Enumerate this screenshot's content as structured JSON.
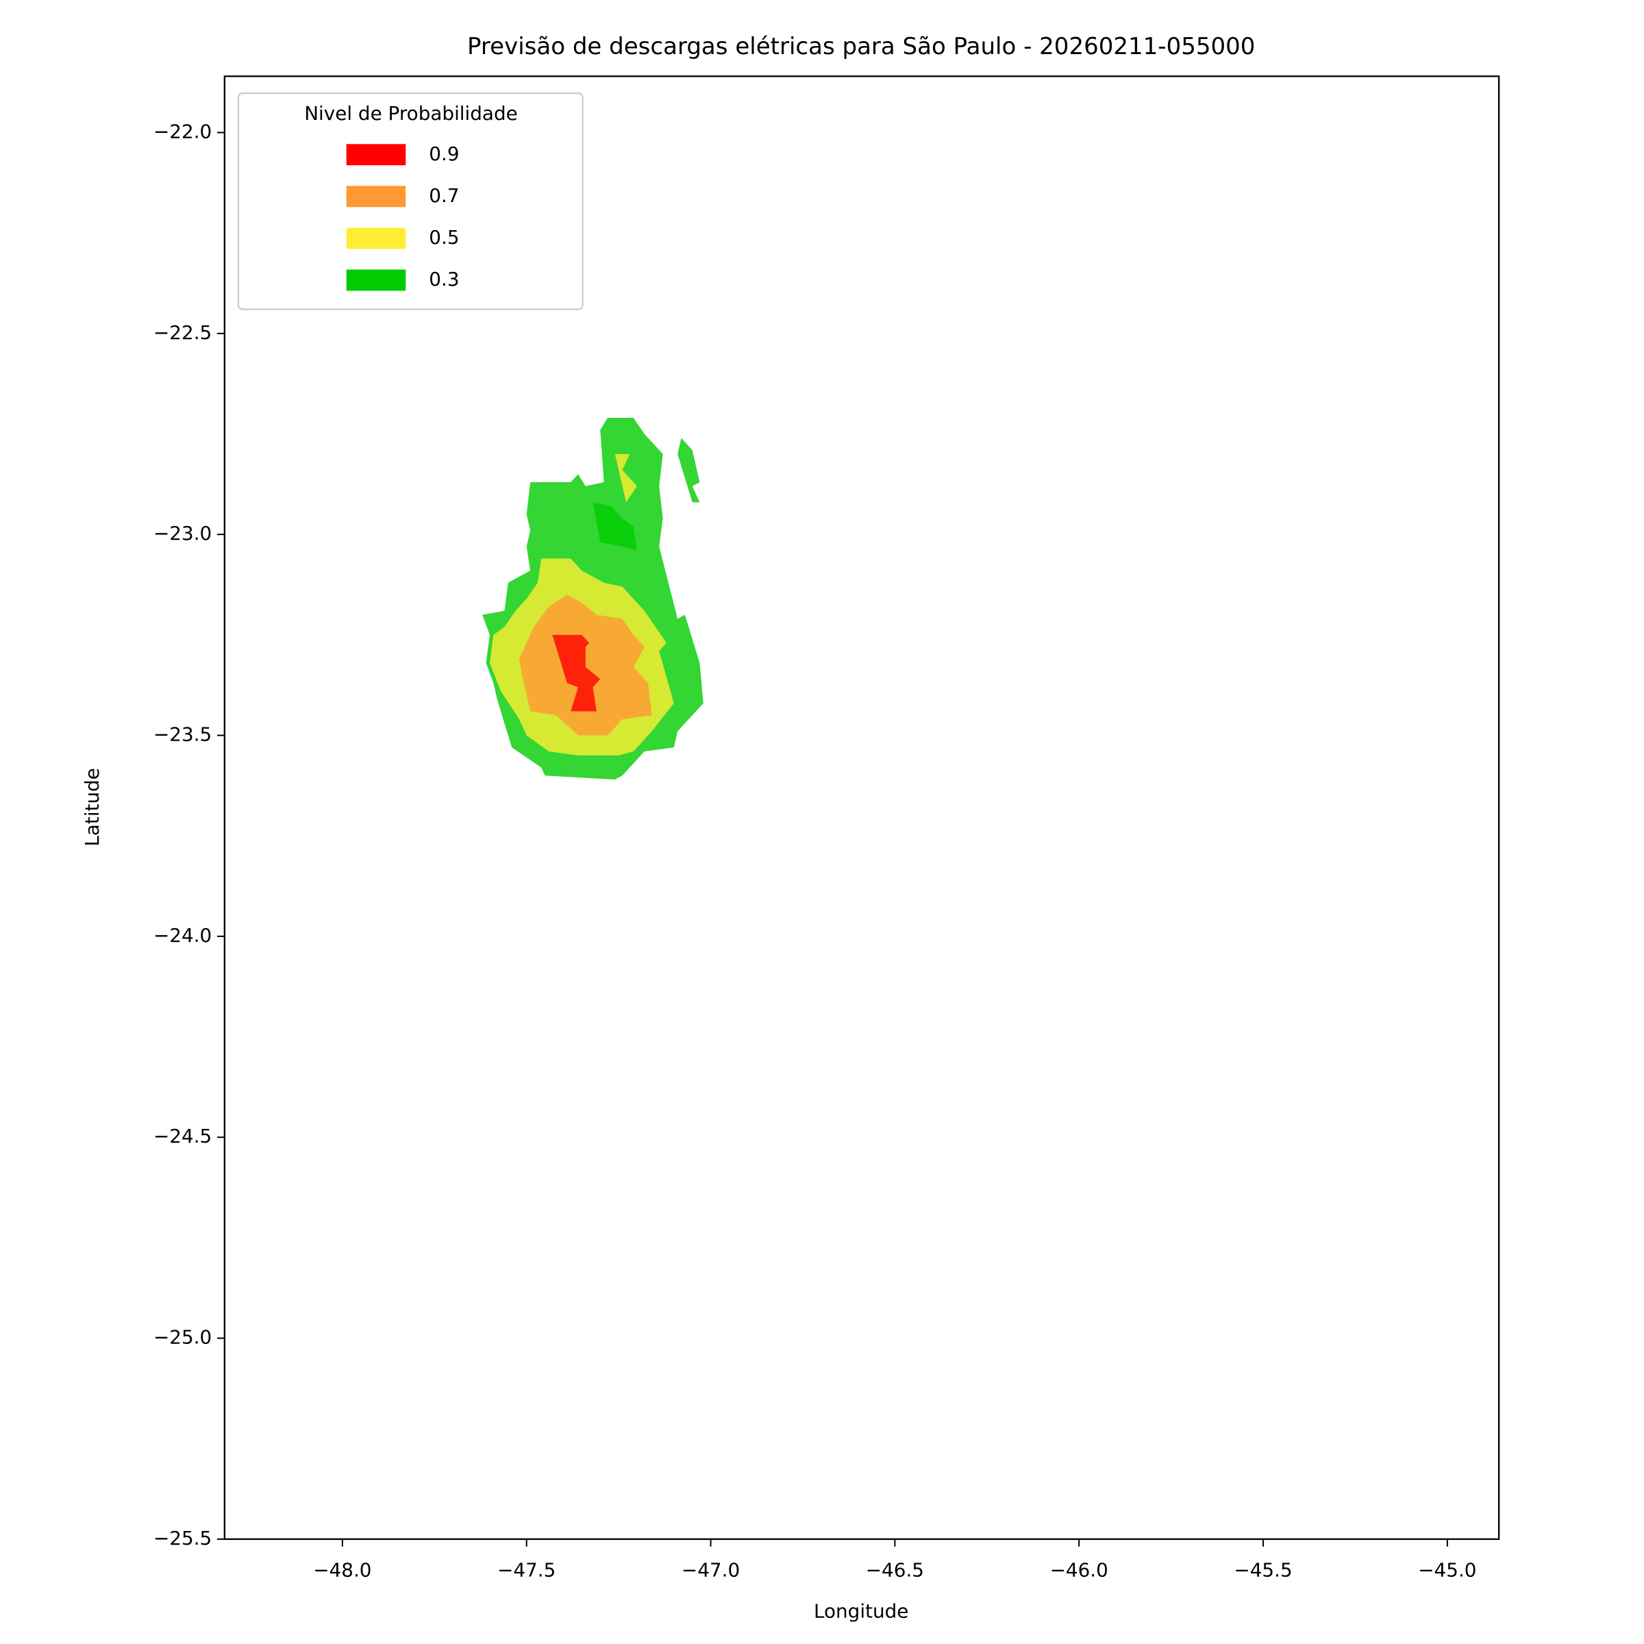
{
  "chart_data": {
    "type": "contourf",
    "title": "Previsão de descargas elétricas para São Paulo - 20260211-055000",
    "x_label": "Longitude",
    "y_label": "Latitude",
    "xlim": [
      -48.32,
      -44.86
    ],
    "ylim": [
      -25.5,
      -21.86
    ],
    "xticks": [
      {
        "value": -48.0,
        "label": "−48.0"
      },
      {
        "value": -47.5,
        "label": "−47.5"
      },
      {
        "value": -47.0,
        "label": "−47.0"
      },
      {
        "value": -46.5,
        "label": "−46.5"
      },
      {
        "value": -46.0,
        "label": "−46.0"
      },
      {
        "value": -45.5,
        "label": "−45.5"
      },
      {
        "value": -45.0,
        "label": "−45.0"
      }
    ],
    "yticks": [
      {
        "value": -22.0,
        "label": "−22.0"
      },
      {
        "value": -22.5,
        "label": "−22.5"
      },
      {
        "value": -23.0,
        "label": "−23.0"
      },
      {
        "value": -23.5,
        "label": "−23.5"
      },
      {
        "value": -24.0,
        "label": "−24.0"
      },
      {
        "value": -24.5,
        "label": "−24.5"
      },
      {
        "value": -25.0,
        "label": "−25.0"
      },
      {
        "value": -25.5,
        "label": "−25.5"
      }
    ],
    "legend_title": "Nivel de Probabilidade",
    "legend_position": "upper left",
    "fill_opacity": 0.8,
    "series": [
      {
        "name": "0.9",
        "color": "#ff0000",
        "polygons": [
          [
            [
              -47.43,
              -23.25
            ],
            [
              -47.35,
              -23.25
            ],
            [
              -47.33,
              -23.27
            ],
            [
              -47.34,
              -23.28
            ],
            [
              -47.34,
              -23.33
            ],
            [
              -47.3,
              -23.36
            ],
            [
              -47.32,
              -23.38
            ],
            [
              -47.31,
              -23.44
            ],
            [
              -47.38,
              -23.44
            ],
            [
              -47.36,
              -23.38
            ],
            [
              -47.39,
              -23.37
            ],
            [
              -47.41,
              -23.31
            ]
          ]
        ]
      },
      {
        "name": "0.7",
        "color": "#ff9933",
        "polygons": [
          [
            [
              -47.44,
              -23.18
            ],
            [
              -47.39,
              -23.15
            ],
            [
              -47.35,
              -23.17
            ],
            [
              -47.31,
              -23.2
            ],
            [
              -47.24,
              -23.21
            ],
            [
              -47.21,
              -23.25
            ],
            [
              -47.18,
              -23.28
            ],
            [
              -47.21,
              -23.33
            ],
            [
              -47.17,
              -23.37
            ],
            [
              -47.16,
              -23.45
            ],
            [
              -47.24,
              -23.46
            ],
            [
              -47.28,
              -23.5
            ],
            [
              -47.36,
              -23.5
            ],
            [
              -47.42,
              -23.45
            ],
            [
              -47.49,
              -23.44
            ],
            [
              -47.51,
              -23.36
            ],
            [
              -47.52,
              -23.31
            ],
            [
              -47.48,
              -23.23
            ]
          ]
        ]
      },
      {
        "name": "0.5",
        "color": "#ffee33",
        "polygons": [
          [
            [
              -47.46,
              -23.06
            ],
            [
              -47.38,
              -23.06
            ],
            [
              -47.35,
              -23.09
            ],
            [
              -47.29,
              -23.12
            ],
            [
              -47.24,
              -23.13
            ],
            [
              -47.18,
              -23.19
            ],
            [
              -47.12,
              -23.27
            ],
            [
              -47.14,
              -23.29
            ],
            [
              -47.1,
              -23.42
            ],
            [
              -47.16,
              -23.49
            ],
            [
              -47.21,
              -23.54
            ],
            [
              -47.25,
              -23.55
            ],
            [
              -47.36,
              -23.55
            ],
            [
              -47.44,
              -23.54
            ],
            [
              -47.5,
              -23.5
            ],
            [
              -47.52,
              -23.46
            ],
            [
              -47.57,
              -23.39
            ],
            [
              -47.6,
              -23.32
            ],
            [
              -47.59,
              -23.25
            ],
            [
              -47.56,
              -23.23
            ],
            [
              -47.53,
              -23.19
            ],
            [
              -47.5,
              -23.16
            ],
            [
              -47.47,
              -23.12
            ]
          ],
          [
            [
              -47.26,
              -22.8
            ],
            [
              -47.22,
              -22.8
            ],
            [
              -47.24,
              -22.84
            ],
            [
              -47.2,
              -22.88
            ],
            [
              -47.23,
              -22.92
            ]
          ]
        ]
      },
      {
        "name": "0.3",
        "color": "#00cc00",
        "polygons": [
          [
            [
              -47.49,
              -22.87
            ],
            [
              -47.38,
              -22.87
            ],
            [
              -47.36,
              -22.85
            ],
            [
              -47.34,
              -22.88
            ],
            [
              -47.29,
              -22.87
            ],
            [
              -47.3,
              -22.74
            ],
            [
              -47.28,
              -22.71
            ],
            [
              -47.21,
              -22.71
            ],
            [
              -47.18,
              -22.75
            ],
            [
              -47.13,
              -22.8
            ],
            [
              -47.14,
              -22.88
            ],
            [
              -47.13,
              -22.96
            ],
            [
              -47.14,
              -23.03
            ],
            [
              -47.09,
              -23.21
            ],
            [
              -47.07,
              -23.2
            ],
            [
              -47.03,
              -23.32
            ],
            [
              -47.02,
              -23.42
            ],
            [
              -47.09,
              -23.49
            ],
            [
              -47.1,
              -23.53
            ],
            [
              -47.18,
              -23.54
            ],
            [
              -47.24,
              -23.6
            ],
            [
              -47.26,
              -23.61
            ],
            [
              -47.45,
              -23.6
            ],
            [
              -47.46,
              -23.58
            ],
            [
              -47.54,
              -23.53
            ],
            [
              -47.57,
              -23.44
            ],
            [
              -47.58,
              -23.41
            ],
            [
              -47.59,
              -23.37
            ],
            [
              -47.61,
              -23.32
            ],
            [
              -47.6,
              -23.25
            ],
            [
              -47.62,
              -23.2
            ],
            [
              -47.56,
              -23.19
            ],
            [
              -47.55,
              -23.12
            ],
            [
              -47.49,
              -23.09
            ],
            [
              -47.5,
              -23.03
            ],
            [
              -47.49,
              -22.99
            ],
            [
              -47.5,
              -22.95
            ]
          ],
          [
            [
              -47.32,
              -22.92
            ],
            [
              -47.27,
              -22.93
            ],
            [
              -47.24,
              -22.96
            ],
            [
              -47.21,
              -22.98
            ],
            [
              -47.2,
              -23.04
            ],
            [
              -47.24,
              -23.03
            ],
            [
              -47.3,
              -23.02
            ]
          ],
          [
            [
              -47.08,
              -22.76
            ],
            [
              -47.05,
              -22.79
            ],
            [
              -47.03,
              -22.87
            ],
            [
              -47.05,
              -22.88
            ],
            [
              -47.03,
              -22.92
            ],
            [
              -47.05,
              -22.92
            ],
            [
              -47.09,
              -22.8
            ]
          ]
        ]
      }
    ]
  }
}
